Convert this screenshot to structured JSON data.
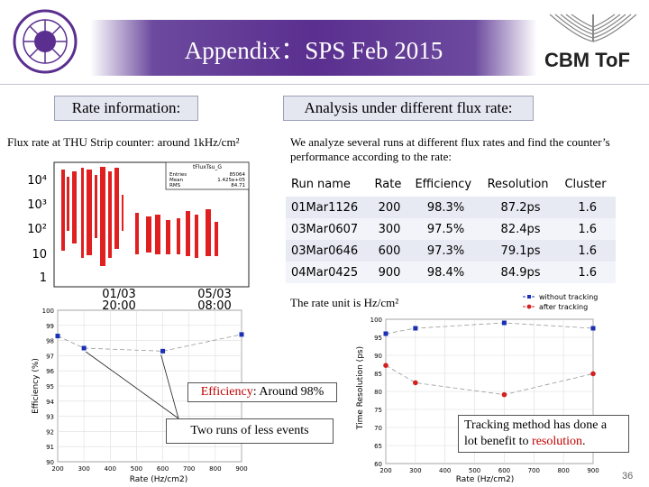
{
  "header": {
    "title": "Appendix：SPS Feb 2015",
    "logo_left_icon": "university-seal-icon",
    "logo_right_text": "CBM ToF"
  },
  "sections": {
    "left_header": "Rate information:",
    "right_header": "Analysis under different flux rate:"
  },
  "text": {
    "flux_line": "Flux rate at THU Strip counter: around 1kHz/cm²",
    "analyze_line": "We analyze several runs at different flux rates and find the counter’s performance according to the rate:",
    "rate_unit": "The rate unit is Hz/cm²"
  },
  "flux_plot": {
    "title": "tFluxTsu_G",
    "stats": [
      {
        "label": "Entries",
        "value": "85064"
      },
      {
        "label": "Mean",
        "value": "1.425e+05"
      },
      {
        "label": "RMS",
        "value": "84.71"
      }
    ],
    "yticks": [
      "10⁴",
      "10³",
      "10²",
      "10",
      "1"
    ],
    "xticks": [
      {
        "date": "01/03",
        "time": "20:00"
      },
      {
        "date": "05/03",
        "time": "08:00"
      }
    ]
  },
  "table": {
    "headers": [
      "Run name",
      "Rate",
      "Efficiency",
      "Resolution",
      "Cluster"
    ],
    "rows": [
      [
        "01Mar1126",
        "200",
        "98.3%",
        "87.2ps",
        "1.6"
      ],
      [
        "03Mar0607",
        "300",
        "97.5%",
        "82.4ps",
        "1.6"
      ],
      [
        "03Mar0646",
        "600",
        "97.3%",
        "79.1ps",
        "1.6"
      ],
      [
        "04Mar0425",
        "900",
        "98.4%",
        "84.9ps",
        "1.6"
      ]
    ]
  },
  "chart_data": [
    {
      "type": "scatter",
      "xlabel": "Rate (Hz/cm2)",
      "ylabel": "Efficiency (%)",
      "xlim": [
        200,
        900
      ],
      "ylim": [
        90,
        100
      ],
      "xticks": [
        200,
        300,
        400,
        500,
        600,
        700,
        800,
        900
      ],
      "yticks": [
        90,
        91,
        92,
        93,
        94,
        95,
        96,
        97,
        98,
        99,
        100
      ],
      "series": [
        {
          "color": "#1a2fb5",
          "x": [
            200,
            300,
            600,
            900
          ],
          "y": [
            98.3,
            97.5,
            97.3,
            98.4
          ]
        }
      ],
      "annotations": [
        "Efficiency: Around 98%",
        "Two runs of less events"
      ]
    },
    {
      "type": "scatter",
      "xlabel": "Rate (Hz/cm2)",
      "ylabel": "Time Resolution (ps)",
      "xlim": [
        200,
        900
      ],
      "ylim": [
        60,
        100
      ],
      "xticks": [
        200,
        300,
        400,
        500,
        600,
        700,
        800,
        900
      ],
      "yticks": [
        60,
        65,
        70,
        75,
        80,
        85,
        90,
        95,
        100
      ],
      "legend": "top-right",
      "series": [
        {
          "name": "without tracking",
          "color": "#1a2fb5",
          "x": [
            200,
            300,
            600,
            900
          ],
          "y": [
            96,
            97.5,
            99,
            97.5
          ]
        },
        {
          "name": "after tracking",
          "color": "#d42020",
          "x": [
            200,
            300,
            600,
            900
          ],
          "y": [
            87.2,
            82.4,
            79.1,
            84.9
          ]
        }
      ],
      "annotations": [
        "Tracking method has done a lot benefit to resolution."
      ]
    }
  ],
  "callouts": {
    "eff_prefix": "Efficiency",
    "eff_suffix": ": Around 98%",
    "two_runs": "Two runs of less events",
    "track_prefix": "Tracking method has done a lot benefit to ",
    "track_hl": "resolution",
    "track_suffix": "."
  },
  "page_number": "36",
  "colors": {
    "title_bar": "#5a2f8f",
    "series_blue": "#1a2fb5",
    "series_red": "#d42020",
    "highlight": "#c00000",
    "table_odd": "#e7eaf3"
  }
}
